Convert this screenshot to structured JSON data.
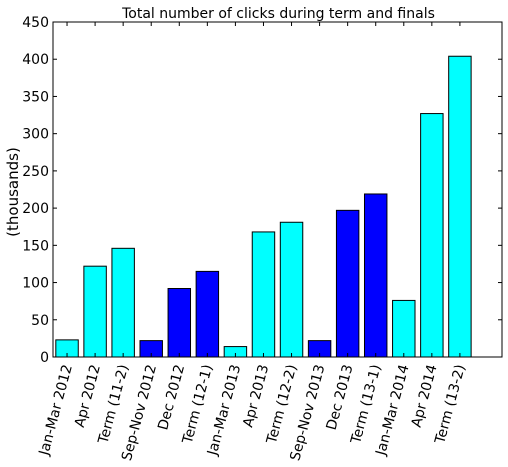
{
  "chart_data": {
    "type": "bar",
    "title": "Total number of clicks during term and finals",
    "xlabel": "",
    "ylabel": "(thousands)",
    "ylim": [
      0,
      450
    ],
    "yticks": [
      0,
      50,
      100,
      150,
      200,
      250,
      300,
      350,
      400,
      450
    ],
    "grid": false,
    "legend": "none",
    "categories": [
      "Jan-Mar 2012",
      "Apr 2012",
      "Term (11-2)",
      "Sep-Nov 2012",
      "Dec 2012",
      "Term (12-1)",
      "Jan-Mar 2013",
      "Apr 2013",
      "Term (12-2)",
      "Sep-Nov 2013",
      "Dec 2013",
      "Term (13-1)",
      "Jan-Mar 2014",
      "Apr 2014",
      "Term (13-2)"
    ],
    "values": [
      23,
      122,
      146,
      22,
      92,
      115,
      14,
      168,
      181,
      22,
      197,
      219,
      76,
      327,
      404
    ],
    "bar_colors": [
      "#00ffff",
      "#00ffff",
      "#00ffff",
      "#0000ff",
      "#0000ff",
      "#0000ff",
      "#00ffff",
      "#00ffff",
      "#00ffff",
      "#0000ff",
      "#0000ff",
      "#0000ff",
      "#00ffff",
      "#00ffff",
      "#00ffff"
    ]
  }
}
